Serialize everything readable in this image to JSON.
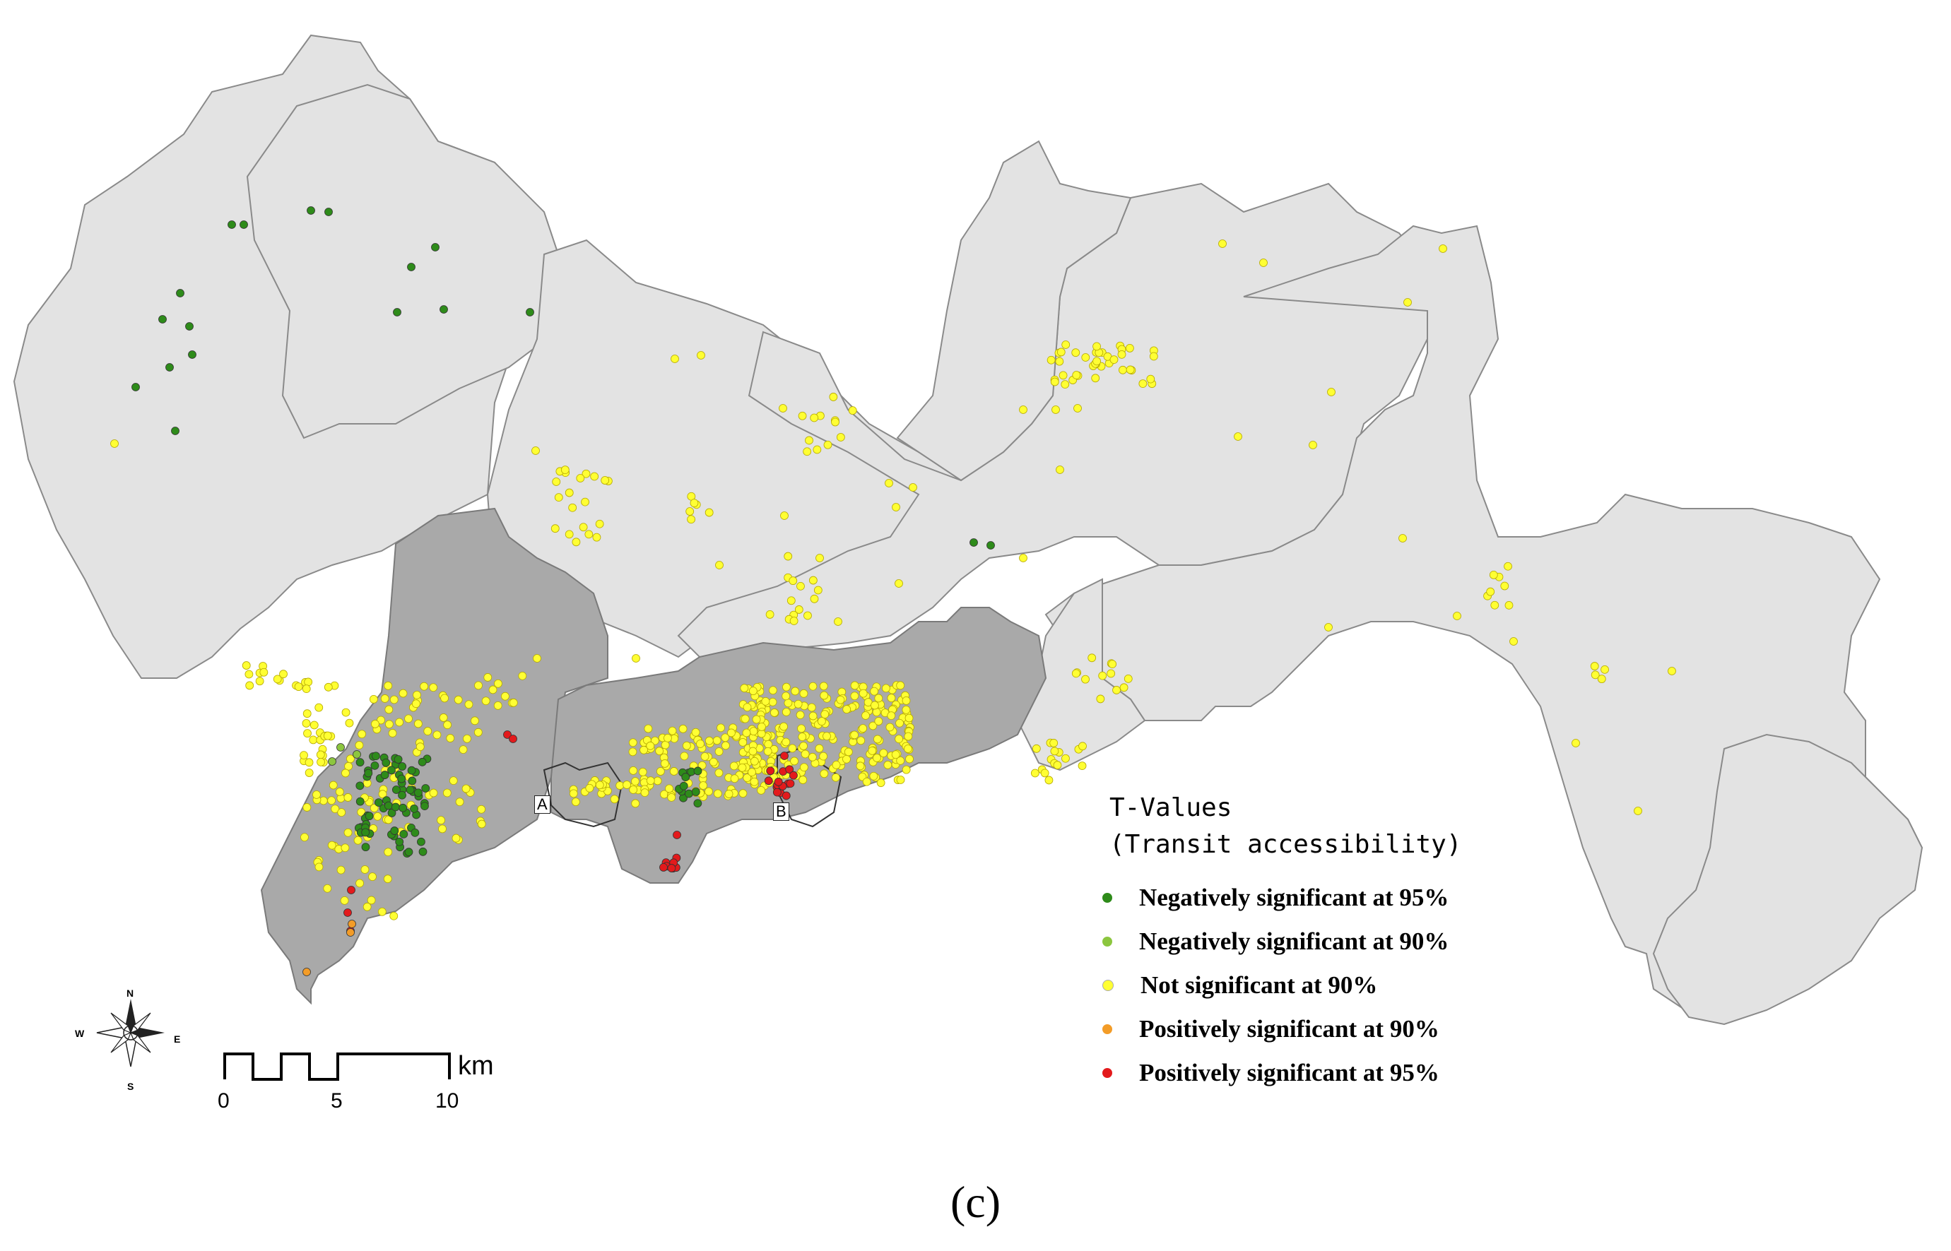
{
  "map": {
    "legend_title_line1": "T-Values",
    "legend_title_line2": "(Transit accessibility)",
    "legend": [
      {
        "label": "Negatively significant at 95%",
        "color": "#2e8b1a"
      },
      {
        "label": "Negatively significant at 90%",
        "color": "#8cc63f"
      },
      {
        "label": "Not significant at 90%",
        "color": "#ffff33"
      },
      {
        "label": "Positively significant at 90%",
        "color": "#f39c27"
      },
      {
        "label": "Positively significant at 95%",
        "color": "#e31a1c"
      }
    ],
    "scale": {
      "unit": "km",
      "ticks": [
        "0",
        "5",
        "10"
      ]
    },
    "compass": {
      "n": "N",
      "s": "S",
      "e": "E",
      "w": "W"
    },
    "boxes": {
      "a": "A",
      "b": "B"
    },
    "caption": "(c)",
    "colors": {
      "region_light": "#e3e3e3",
      "region_dark": "#a9a9a9",
      "boundary": "#8a8a8a"
    }
  }
}
